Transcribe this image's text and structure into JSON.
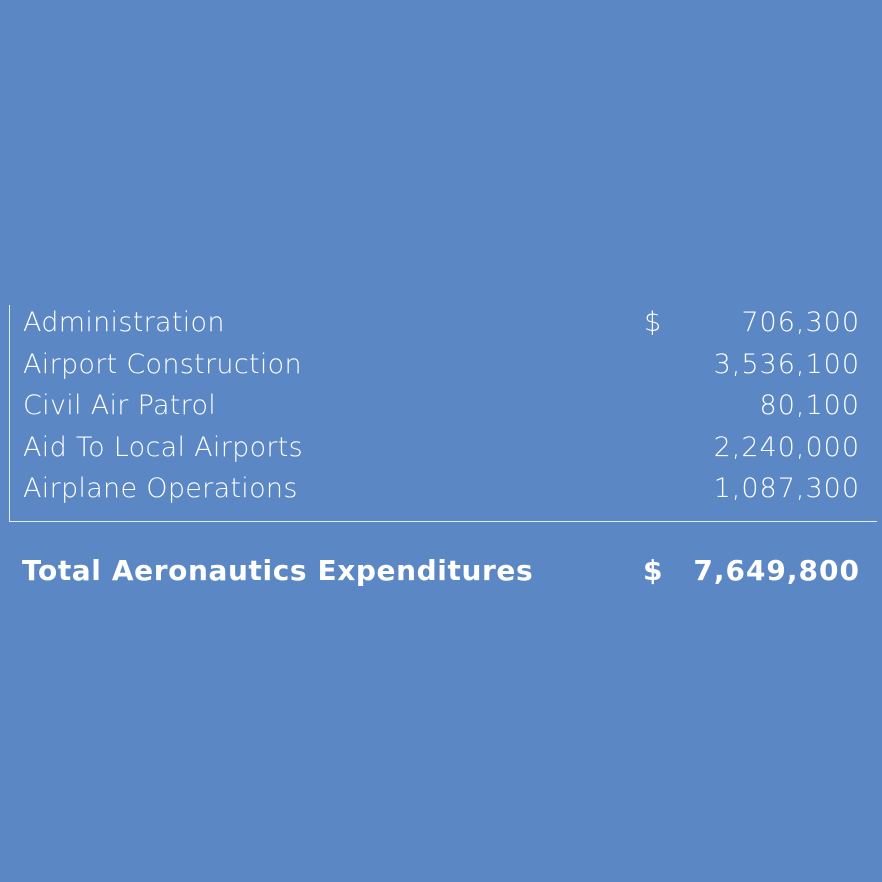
{
  "rows": [
    {
      "label": "Administration",
      "currency": "$",
      "amount": "706,300"
    },
    {
      "label": "Airport Construction",
      "currency": "",
      "amount": "3,536,100"
    },
    {
      "label": "Civil Air Patrol",
      "currency": "",
      "amount": "80,100"
    },
    {
      "label": "Aid To Local Airports",
      "currency": "",
      "amount": "2,240,000"
    },
    {
      "label": "Airplane Operations",
      "currency": "",
      "amount": "1,087,300"
    }
  ],
  "total": {
    "label": "Total Aeronautics Expenditures",
    "currency": "$",
    "amount": "7,649,800"
  },
  "colors": {
    "background": "#5b87c5",
    "text": "#ffffff"
  }
}
